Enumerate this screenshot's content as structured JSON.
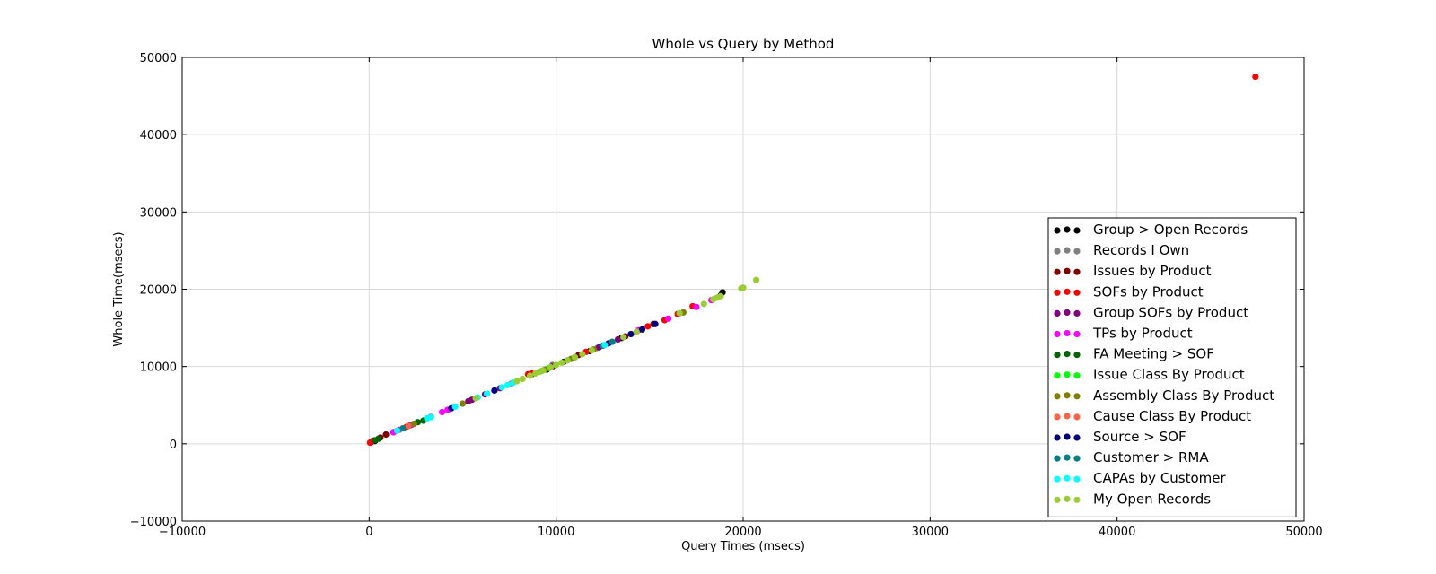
{
  "chart_data": {
    "type": "scatter",
    "title": "Whole vs Query by Method",
    "xlabel": "Query Times (msecs)",
    "ylabel": "Whole Time(msecs)",
    "xlim": [
      -10000,
      50000
    ],
    "ylim": [
      -10000,
      50000
    ],
    "xticks": [
      -10000,
      0,
      10000,
      20000,
      30000,
      40000,
      50000
    ],
    "yticks": [
      -10000,
      0,
      10000,
      20000,
      30000,
      40000,
      50000
    ],
    "xtick_labels": [
      "−10000",
      "0",
      "10000",
      "20000",
      "30000",
      "40000",
      "50000"
    ],
    "ytick_labels": [
      "−10000",
      "0",
      "10000",
      "20000",
      "30000",
      "40000",
      "50000"
    ],
    "grid": true,
    "legend_position": "lower-right",
    "series": [
      {
        "name": "Group > Open Records",
        "color": "#000000",
        "points": [
          [
            300,
            350
          ],
          [
            9500,
            9600
          ],
          [
            11800,
            12000
          ],
          [
            13500,
            13700
          ],
          [
            18800,
            19200
          ],
          [
            18900,
            19600
          ]
        ]
      },
      {
        "name": "Records I Own",
        "color": "#808080",
        "points": [
          [
            9800,
            10200
          ],
          [
            10600,
            10800
          ],
          [
            12200,
            12400
          ]
        ]
      },
      {
        "name": "Issues by Product",
        "color": "#800000",
        "points": [
          [
            100,
            200
          ],
          [
            600,
            800
          ],
          [
            900,
            1200
          ],
          [
            2200,
            2400
          ],
          [
            8700,
            9000
          ],
          [
            11200,
            11500
          ],
          [
            13700,
            13900
          ],
          [
            15200,
            15500
          ]
        ]
      },
      {
        "name": "SOFs by Product",
        "color": "#ff0000",
        "points": [
          [
            50,
            150
          ],
          [
            200,
            400
          ],
          [
            1300,
            1500
          ],
          [
            2000,
            2200
          ],
          [
            8500,
            9000
          ],
          [
            8700,
            9100
          ],
          [
            11600,
            11900
          ],
          [
            14900,
            15200
          ],
          [
            15800,
            16000
          ],
          [
            16500,
            16800
          ],
          [
            17300,
            17800
          ],
          [
            47400,
            47500
          ]
        ]
      },
      {
        "name": "Group SOFs by Product",
        "color": "#800080",
        "points": [
          [
            5300,
            5500
          ],
          [
            5500,
            5700
          ],
          [
            6200,
            6400
          ],
          [
            6700,
            6900
          ],
          [
            7000,
            7200
          ],
          [
            9800,
            10000
          ],
          [
            12300,
            12500
          ],
          [
            13300,
            13500
          ]
        ]
      },
      {
        "name": "TPs by Product",
        "color": "#ff00ff",
        "points": [
          [
            1300,
            1500
          ],
          [
            1600,
            1800
          ],
          [
            2300,
            2500
          ],
          [
            3300,
            3500
          ],
          [
            3900,
            4100
          ],
          [
            4200,
            4400
          ],
          [
            14400,
            14700
          ],
          [
            16000,
            16200
          ],
          [
            17500,
            17700
          ],
          [
            18300,
            18600
          ]
        ]
      },
      {
        "name": "FA Meeting > SOF",
        "color": "#006400",
        "points": [
          [
            300,
            450
          ],
          [
            500,
            650
          ],
          [
            2600,
            2800
          ],
          [
            2900,
            3000
          ]
        ]
      },
      {
        "name": "Issue Class By Product",
        "color": "#00ff00",
        "points": [
          [
            9200,
            9400
          ],
          [
            9600,
            9800
          ]
        ]
      },
      {
        "name": "Assembly Class By Product",
        "color": "#808000",
        "points": [
          [
            2400,
            2600
          ],
          [
            5000,
            5200
          ],
          [
            9400,
            9600
          ],
          [
            10800,
            11000
          ],
          [
            12000,
            12200
          ],
          [
            16800,
            17000
          ]
        ]
      },
      {
        "name": "Cause Class By Product",
        "color": "#ff6347",
        "points": [
          [
            2100,
            2300
          ],
          [
            7600,
            7800
          ]
        ]
      },
      {
        "name": "Source > SOF",
        "color": "#000080",
        "points": [
          [
            4400,
            4600
          ],
          [
            6700,
            6900
          ],
          [
            10400,
            10600
          ],
          [
            12800,
            13000
          ],
          [
            14000,
            14200
          ],
          [
            14600,
            14800
          ],
          [
            15300,
            15500
          ]
        ]
      },
      {
        "name": "Customer > RMA",
        "color": "#008080",
        "points": [
          [
            1800,
            2000
          ],
          [
            11000,
            11200
          ],
          [
            12500,
            12700
          ],
          [
            13000,
            13200
          ]
        ]
      },
      {
        "name": "CAPAs by Customer",
        "color": "#00ffff",
        "points": [
          [
            1500,
            1700
          ],
          [
            3100,
            3300
          ],
          [
            3300,
            3450
          ],
          [
            4600,
            4800
          ],
          [
            5800,
            6000
          ],
          [
            6300,
            6500
          ],
          [
            7100,
            7300
          ],
          [
            7400,
            7600
          ],
          [
            7700,
            7900
          ],
          [
            12600,
            12800
          ]
        ]
      },
      {
        "name": "My Open Records",
        "color": "#9acd32",
        "points": [
          [
            5700,
            5900
          ],
          [
            7900,
            8100
          ],
          [
            8200,
            8400
          ],
          [
            8600,
            8800
          ],
          [
            8900,
            9100
          ],
          [
            9100,
            9300
          ],
          [
            9300,
            9500
          ],
          [
            9700,
            9900
          ],
          [
            10000,
            10200
          ],
          [
            10300,
            10500
          ],
          [
            10600,
            10800
          ],
          [
            11000,
            11200
          ],
          [
            11400,
            11600
          ],
          [
            11900,
            12100
          ],
          [
            13600,
            13800
          ],
          [
            14300,
            14500
          ],
          [
            16600,
            16900
          ],
          [
            17900,
            18100
          ],
          [
            18400,
            18700
          ],
          [
            18600,
            18900
          ],
          [
            18800,
            19100
          ],
          [
            19900,
            20100
          ],
          [
            20000,
            20200
          ],
          [
            20700,
            21200
          ]
        ]
      }
    ]
  }
}
